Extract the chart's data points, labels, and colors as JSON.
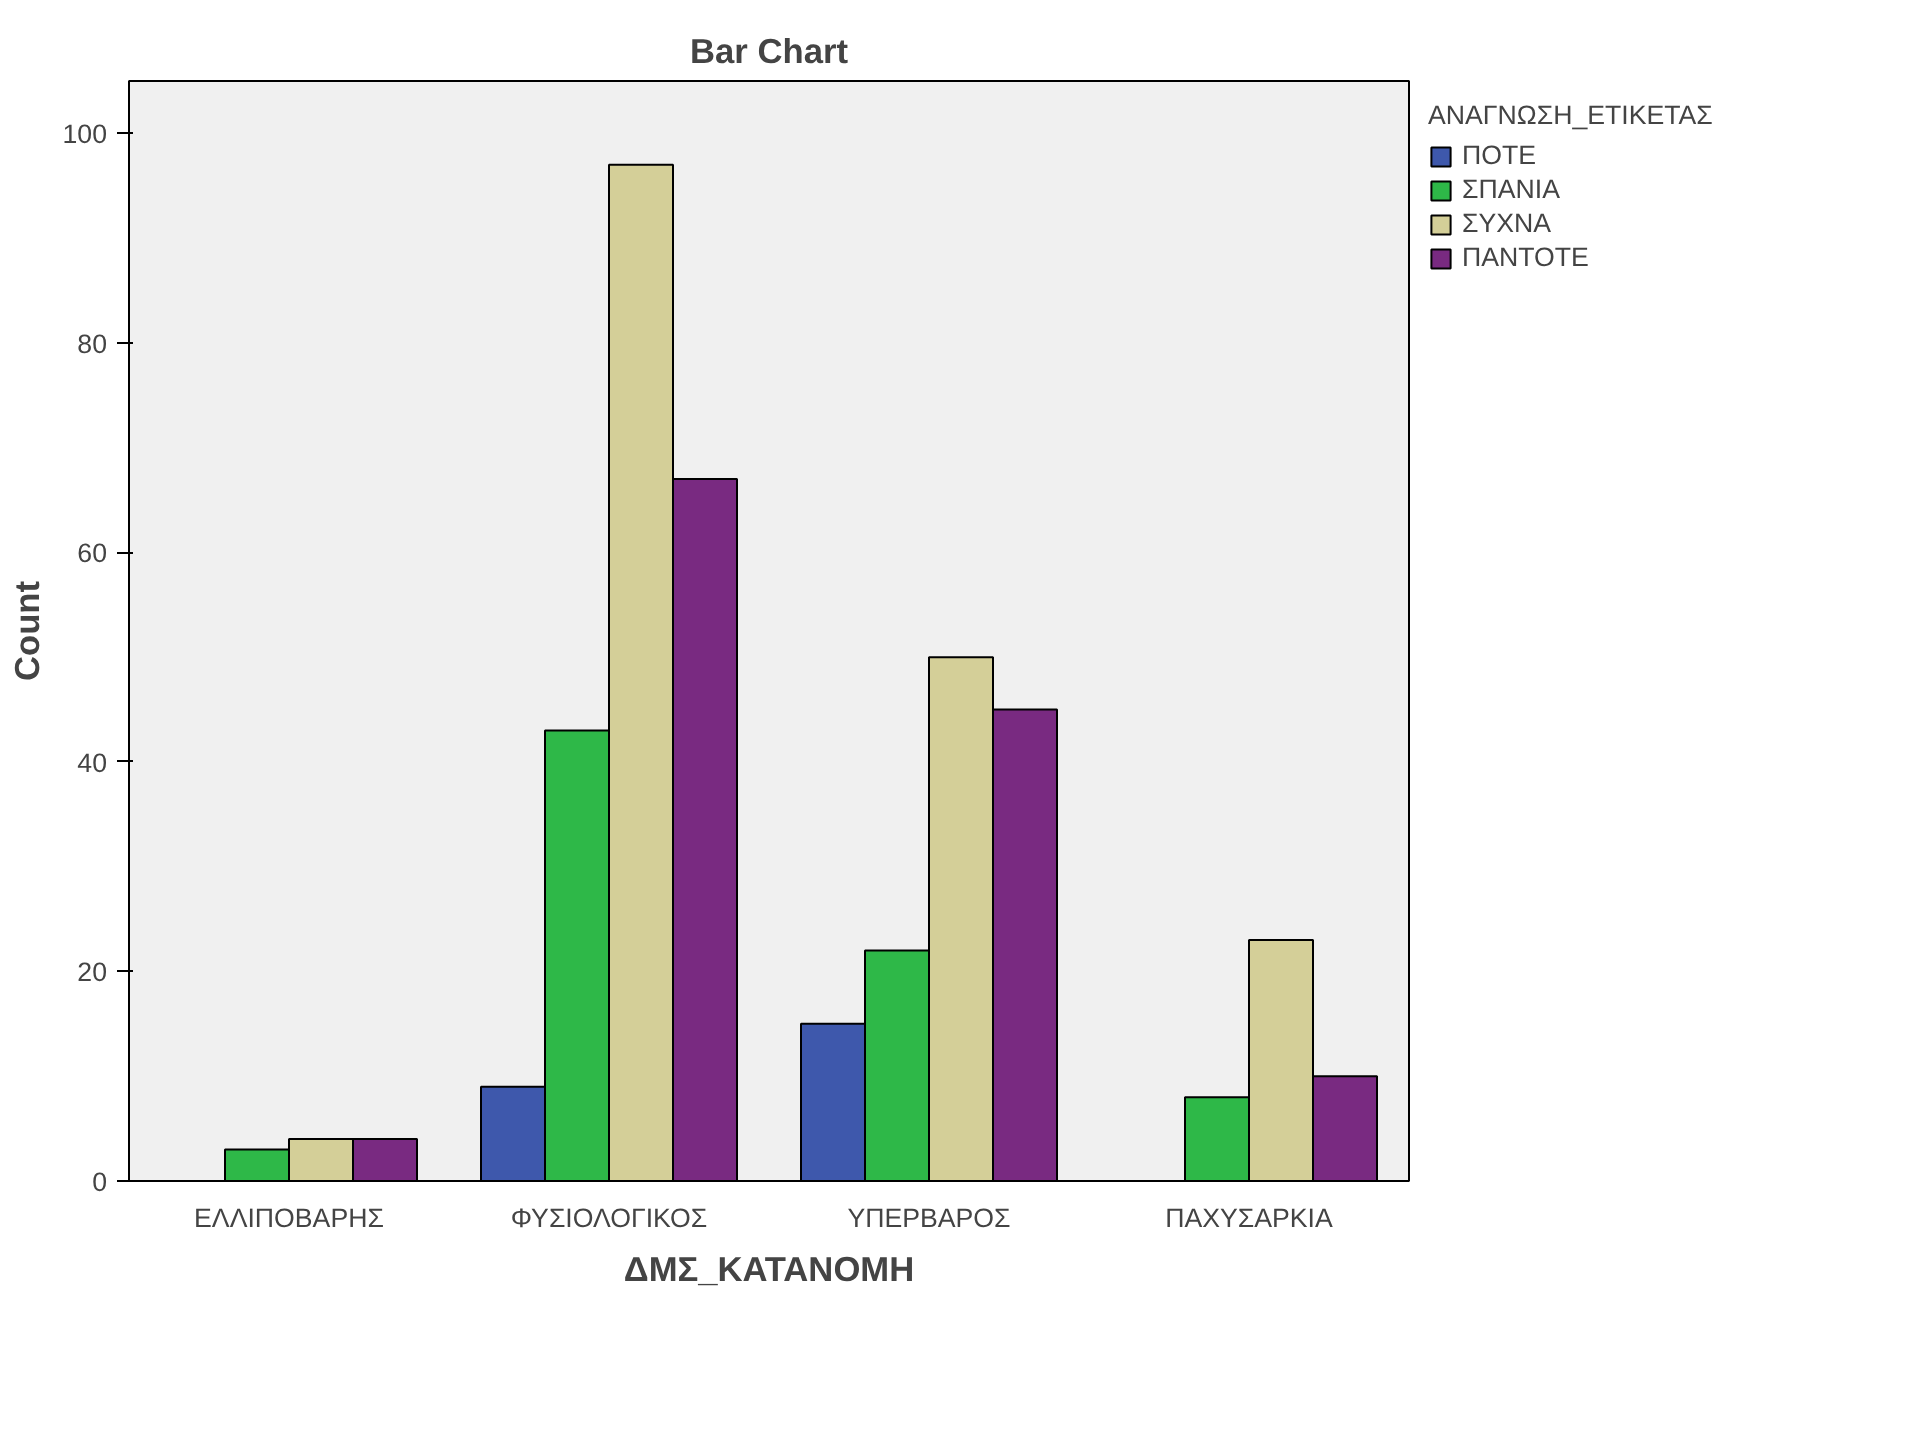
{
  "chart_data": {
    "type": "bar",
    "title": "Bar Chart",
    "xlabel": "ΔΜΣ_ΚΑΤΑΝΟΜΗ",
    "ylabel": "Count",
    "legend_title": "ΑΝΑΓΝΩΣΗ_ΕΤΙΚΕΤΑΣ",
    "legend": "right",
    "categories": [
      "ΕΛΛΙΠΟΒΑΡΗΣ",
      "ΦΥΣΙΟΛΟΓΙΚΟΣ",
      "ΥΠΕΡΒΑΡΟΣ",
      "ΠΑΧΥΣΑΡΚΙΑ"
    ],
    "series": [
      {
        "name": "ΠΟΤΕ",
        "color": "#3e58ac",
        "values": [
          null,
          9,
          15,
          null
        ]
      },
      {
        "name": "ΣΠΑΝΙΑ",
        "color": "#2eb848",
        "values": [
          3,
          43,
          22,
          8
        ]
      },
      {
        "name": "ΣΥΧΝΑ",
        "color": "#d4cf98",
        "values": [
          4,
          97,
          50,
          23
        ]
      },
      {
        "name": "ΠΑΝΤΟΤΕ",
        "color": "#792a81",
        "values": [
          4,
          67,
          45,
          10
        ]
      }
    ],
    "ylim": [
      0,
      105
    ],
    "yticks": [
      0,
      20,
      40,
      60,
      80,
      100
    ],
    "grid": false
  }
}
